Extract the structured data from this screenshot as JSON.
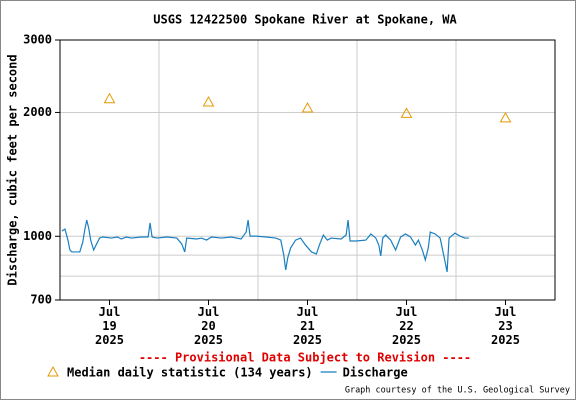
{
  "chart_data": {
    "type": "line",
    "title": "USGS 12422500 Spokane River at Spokane, WA",
    "y_label": "Discharge, cubic feet per second",
    "notice": "---- Provisional Data Subject to Revision ----",
    "credit": "Graph courtesy of the U.S. Geological Survey",
    "y_log": true,
    "ylim": [
      700,
      3000
    ],
    "yticks": [
      700,
      1000,
      2000,
      3000
    ],
    "y_minor_grid": [
      800,
      900
    ],
    "xlim": [
      19,
      24
    ],
    "xticks": [
      {
        "value": 19.5,
        "label": "Jul\n19\n2025"
      },
      {
        "value": 20.5,
        "label": "Jul\n20\n2025"
      },
      {
        "value": 21.5,
        "label": "Jul\n21\n2025"
      },
      {
        "value": 22.5,
        "label": "Jul\n22\n2025"
      },
      {
        "value": 23.5,
        "label": "Jul\n23\n2025"
      }
    ],
    "x_grid": [
      20,
      21,
      22,
      23
    ],
    "grid": true,
    "series": [
      {
        "name": "Median daily statistic (134 years)",
        "color": "#e69a00",
        "marker": "triangle",
        "x": [
          19.5,
          20.5,
          21.5,
          22.5,
          23.5
        ],
        "values": [
          2160,
          2120,
          2050,
          1990,
          1940
        ]
      },
      {
        "name": "Discharge",
        "color": "#1a7fc0",
        "marker": "line",
        "x": [
          19.02,
          19.05,
          19.08,
          19.1,
          19.12,
          19.16,
          19.2,
          19.23,
          19.25,
          19.27,
          19.29,
          19.31,
          19.34,
          19.37,
          19.4,
          19.43,
          19.52,
          19.58,
          19.62,
          19.67,
          19.72,
          19.82,
          19.89,
          19.91,
          19.93,
          19.98,
          20.08,
          20.18,
          20.23,
          20.26,
          20.28,
          20.38,
          20.43,
          20.48,
          20.53,
          20.63,
          20.73,
          20.83,
          20.88,
          20.9,
          20.92,
          20.98,
          21.08,
          21.18,
          21.23,
          21.26,
          21.28,
          21.3,
          21.33,
          21.38,
          21.43,
          21.48,
          21.54,
          21.59,
          21.62,
          21.66,
          21.7,
          21.74,
          21.84,
          21.89,
          21.91,
          21.93,
          21.99,
          22.09,
          22.14,
          22.19,
          22.22,
          22.24,
          22.26,
          22.29,
          22.34,
          22.39,
          22.44,
          22.49,
          22.54,
          22.59,
          22.62,
          22.66,
          22.69,
          22.72,
          22.74,
          22.79,
          22.84,
          22.89,
          22.91,
          22.93,
          22.99,
          23.04,
          23.09,
          23.13
        ],
        "values": [
          1030,
          1041,
          979,
          926,
          916,
          916,
          916,
          968,
          1036,
          1095,
          1047,
          979,
          926,
          958,
          990,
          996,
          990,
          996,
          985,
          996,
          990,
          996,
          996,
          1077,
          996,
          990,
          996,
          990,
          958,
          916,
          990,
          985,
          990,
          979,
          996,
          990,
          996,
          985,
          1024,
          1095,
          1001,
          1001,
          996,
          990,
          979,
          901,
          828,
          886,
          937,
          979,
          990,
          952,
          916,
          906,
          952,
          1007,
          979,
          990,
          985,
          1007,
          1095,
          974,
          974,
          979,
          1013,
          990,
          952,
          896,
          990,
          1007,
          979,
          926,
          996,
          1013,
          996,
          952,
          979,
          926,
          876,
          937,
          1024,
          1013,
          990,
          866,
          819,
          990,
          1018,
          1001,
          990,
          990
        ]
      }
    ]
  }
}
